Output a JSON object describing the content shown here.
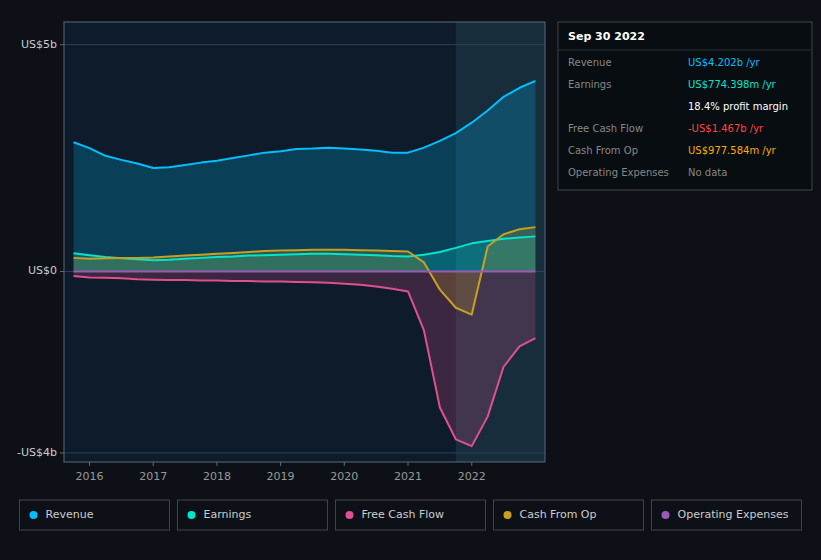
{
  "chart_data": {
    "type": "area",
    "x": [
      2015.75,
      2016.0,
      2016.25,
      2016.5,
      2016.75,
      2017.0,
      2017.25,
      2017.5,
      2017.75,
      2018.0,
      2018.25,
      2018.5,
      2018.75,
      2019.0,
      2019.25,
      2019.5,
      2019.75,
      2020.0,
      2020.25,
      2020.5,
      2020.75,
      2021.0,
      2021.25,
      2021.5,
      2021.75,
      2022.0,
      2022.25,
      2022.5,
      2022.75,
      2023.0
    ],
    "series": [
      {
        "name": "Revenue",
        "color": "#00bfff",
        "values": [
          2.85,
          2.72,
          2.55,
          2.46,
          2.38,
          2.28,
          2.3,
          2.35,
          2.4,
          2.44,
          2.5,
          2.56,
          2.62,
          2.65,
          2.7,
          2.71,
          2.73,
          2.71,
          2.69,
          2.66,
          2.62,
          2.62,
          2.73,
          2.88,
          3.05,
          3.28,
          3.55,
          3.85,
          4.05,
          4.202
        ]
      },
      {
        "name": "Earnings",
        "color": "#00e5cc",
        "values": [
          0.4,
          0.36,
          0.32,
          0.29,
          0.27,
          0.25,
          0.26,
          0.28,
          0.3,
          0.32,
          0.33,
          0.35,
          0.36,
          0.37,
          0.38,
          0.39,
          0.39,
          0.38,
          0.37,
          0.36,
          0.34,
          0.33,
          0.37,
          0.43,
          0.52,
          0.62,
          0.67,
          0.72,
          0.75,
          0.774
        ]
      },
      {
        "name": "Free Cash Flow",
        "color": "#e05090",
        "values": [
          -0.1,
          -0.13,
          -0.14,
          -0.15,
          -0.17,
          -0.18,
          -0.19,
          -0.19,
          -0.2,
          -0.2,
          -0.21,
          -0.21,
          -0.22,
          -0.22,
          -0.23,
          -0.24,
          -0.25,
          -0.27,
          -0.29,
          -0.33,
          -0.38,
          -0.44,
          -1.3,
          -3.0,
          -3.7,
          -3.85,
          -3.2,
          -2.1,
          -1.65,
          -1.467
        ]
      },
      {
        "name": "Cash From Op",
        "color": "#c8a020",
        "values": [
          0.3,
          0.28,
          0.29,
          0.3,
          0.3,
          0.31,
          0.33,
          0.35,
          0.37,
          0.39,
          0.41,
          0.43,
          0.45,
          0.46,
          0.47,
          0.48,
          0.48,
          0.48,
          0.47,
          0.46,
          0.45,
          0.44,
          0.2,
          -0.4,
          -0.8,
          -0.95,
          0.55,
          0.82,
          0.93,
          0.978
        ]
      },
      {
        "name": "Operating Expenses",
        "color": "#9b59b6",
        "values": [
          0.0,
          0.0,
          0.0,
          0.0,
          0.0,
          0.0,
          0.0,
          0.0,
          0.0,
          0.0,
          0.0,
          0.0,
          0.0,
          0.0,
          0.0,
          0.0,
          0.0,
          0.0,
          0.0,
          0.0,
          0.0,
          0.0,
          0.0,
          0.0,
          0.0,
          0.0,
          0.0,
          0.0,
          0.0,
          0.0
        ]
      }
    ],
    "xlim": [
      2015.6,
      2023.15
    ],
    "xticks": [
      2016,
      2017,
      2018,
      2019,
      2020,
      2021,
      2022
    ],
    "ylim": [
      -4.2,
      5.5
    ],
    "yticks": [
      {
        "value": 5.0,
        "label": "US$5b"
      },
      {
        "value": 0.0,
        "label": "US$0"
      },
      {
        "value": -4.0,
        "label": "-US$4b"
      }
    ],
    "grid": true,
    "legend": "bottom",
    "highlight_start": 2021.75,
    "annotations": [
      {
        "text": "Sep 30 2022"
      },
      {
        "label": "Revenue",
        "text": "US$4.202b /yr",
        "color": "#00bfff"
      },
      {
        "label": "Earnings",
        "text": "US$774.398m /yr",
        "color": "#00e5cc"
      },
      {
        "text": "18.4% profit margin",
        "color": "#ffffff"
      },
      {
        "label": "Free Cash Flow",
        "text": "-US$1.467b /yr",
        "color": "#ff4444"
      },
      {
        "label": "Cash From Op",
        "text": "US$977.584m /yr",
        "color": "#ffaa00"
      },
      {
        "label": "Operating Expenses",
        "text": "No data",
        "color": "#888888"
      }
    ]
  }
}
